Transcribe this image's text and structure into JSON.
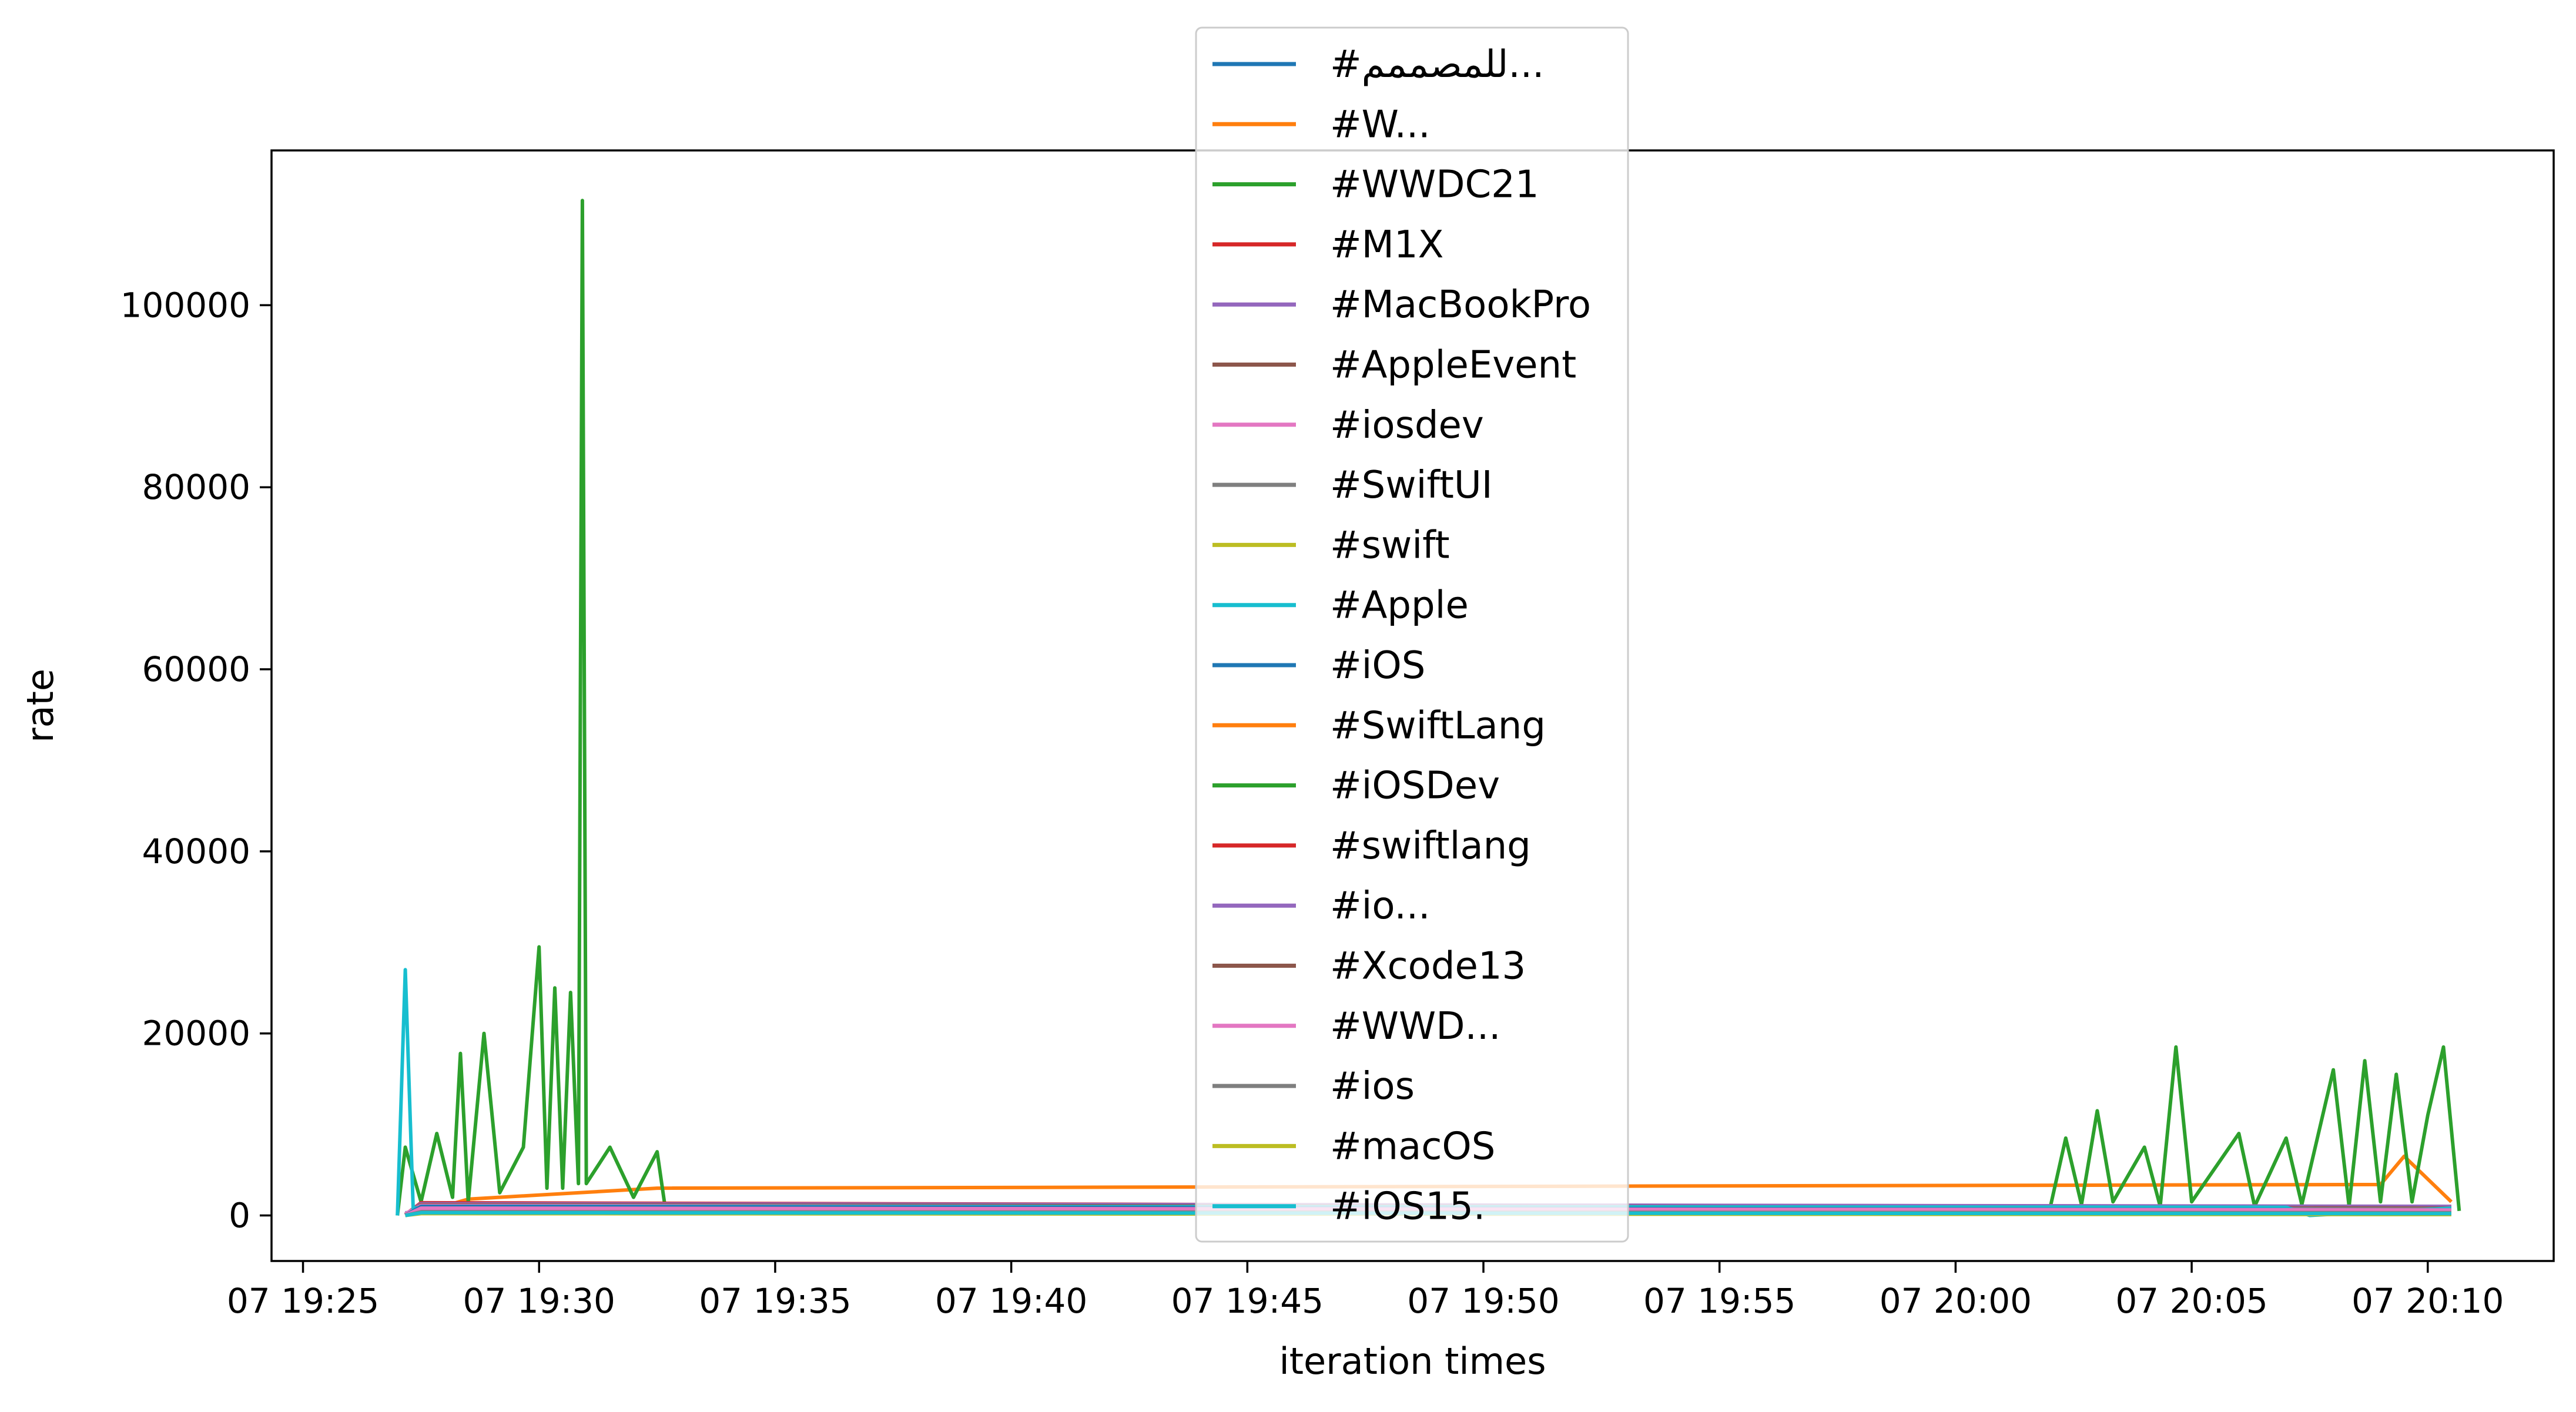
{
  "chart_data": {
    "type": "line",
    "title": "",
    "xlabel": "iteration times",
    "ylabel": "rate",
    "x_range": [
      "07 19:27:00",
      "07 20:10:40"
    ],
    "xlim": [
      "07 19:24:20",
      "07 20:12:40"
    ],
    "ylim": [
      -5000,
      117000
    ],
    "x_ticks": [
      "07 19:25",
      "07 19:30",
      "07 19:35",
      "07 19:40",
      "07 19:45",
      "07 19:50",
      "07 19:55",
      "07 20:00",
      "07 20:05",
      "07 20:10"
    ],
    "y_ticks": [
      0,
      20000,
      40000,
      60000,
      80000,
      100000
    ],
    "grid": false,
    "legend_position": "upper center",
    "series": [
      {
        "name": "#للمصممم...",
        "color": "#1f77b4",
        "points": [
          [
            "07 19:27:10",
            300
          ],
          [
            "07 19:32:30",
            600
          ],
          [
            "07 20:03:00",
            700
          ],
          [
            "07 20:10:30",
            600
          ]
        ]
      },
      {
        "name": "#W...",
        "color": "#ff7f0e",
        "points": [
          [
            "07 19:27:10",
            0
          ],
          [
            "07 19:27:50",
            800
          ],
          [
            "07 19:28:30",
            1800
          ],
          [
            "07 19:32:30",
            3000
          ],
          [
            "07 20:09:00",
            3400
          ],
          [
            "07 20:09:30",
            6500
          ],
          [
            "07 20:10:30",
            1500
          ]
        ]
      },
      {
        "name": "#WWDC21",
        "color": "#2ca02c",
        "points": [
          [
            "07 19:27:00",
            0
          ],
          [
            "07 19:27:10",
            7500
          ],
          [
            "07 19:27:30",
            1500
          ],
          [
            "07 19:27:50",
            9000
          ],
          [
            "07 19:28:10",
            2000
          ],
          [
            "07 19:28:20",
            17800
          ],
          [
            "07 19:28:30",
            1500
          ],
          [
            "07 19:28:50",
            20000
          ],
          [
            "07 19:29:10",
            2500
          ],
          [
            "07 19:29:40",
            7500
          ],
          [
            "07 19:30:00",
            29500
          ],
          [
            "07 19:30:10",
            3000
          ],
          [
            "07 19:30:20",
            25000
          ],
          [
            "07 19:30:30",
            3000
          ],
          [
            "07 19:30:40",
            24500
          ],
          [
            "07 19:30:50",
            3500
          ],
          [
            "07 19:30:55",
            111500
          ],
          [
            "07 19:31:00",
            3500
          ],
          [
            "07 19:31:30",
            7500
          ],
          [
            "07 19:32:00",
            2000
          ],
          [
            "07 19:32:30",
            7000
          ],
          [
            "07 19:32:40",
            1000
          ],
          [
            "07 20:02:00",
            800
          ],
          [
            "07 20:02:20",
            8500
          ],
          [
            "07 20:02:40",
            1200
          ],
          [
            "07 20:03:00",
            11500
          ],
          [
            "07 20:03:20",
            1500
          ],
          [
            "07 20:04:00",
            7500
          ],
          [
            "07 20:04:20",
            1000
          ],
          [
            "07 20:04:40",
            18500
          ],
          [
            "07 20:05:00",
            1500
          ],
          [
            "07 20:06:00",
            9000
          ],
          [
            "07 20:06:20",
            1000
          ],
          [
            "07 20:07:00",
            8500
          ],
          [
            "07 20:07:20",
            1200
          ],
          [
            "07 20:08:00",
            16000
          ],
          [
            "07 20:08:20",
            1000
          ],
          [
            "07 20:08:40",
            17000
          ],
          [
            "07 20:09:00",
            1500
          ],
          [
            "07 20:09:20",
            15500
          ],
          [
            "07 20:09:40",
            1500
          ],
          [
            "07 20:10:00",
            11000
          ],
          [
            "07 20:10:20",
            18500
          ],
          [
            "07 20:10:40",
            500
          ]
        ]
      },
      {
        "name": "#M1X",
        "color": "#d62728",
        "points": [
          [
            "07 19:27:10",
            100
          ],
          [
            "07 19:27:30",
            1400
          ],
          [
            "07 20:10:30",
            900
          ]
        ]
      },
      {
        "name": "#MacBookPro",
        "color": "#9467bd",
        "points": [
          [
            "07 19:27:10",
            100
          ],
          [
            "07 19:27:30",
            1300
          ],
          [
            "07 20:10:30",
            1000
          ]
        ]
      },
      {
        "name": "#AppleEvent",
        "color": "#8c564b",
        "points": [
          [
            "07 19:27:10",
            100
          ],
          [
            "07 19:27:30",
            1200
          ],
          [
            "07 20:10:30",
            800
          ]
        ]
      },
      {
        "name": "#iosdev",
        "color": "#e377c2",
        "points": [
          [
            "07 19:27:10",
            200
          ],
          [
            "07 19:27:30",
            1100
          ],
          [
            "07 20:10:30",
            700
          ]
        ]
      },
      {
        "name": "#SwiftUI",
        "color": "#7f7f7f",
        "points": [
          [
            "07 19:27:10",
            50
          ],
          [
            "07 19:27:30",
            900
          ],
          [
            "07 20:10:30",
            700
          ]
        ]
      },
      {
        "name": "#swift",
        "color": "#bcbd22",
        "points": [
          [
            "07 19:27:10",
            0
          ],
          [
            "07 19:27:30",
            500
          ],
          [
            "07 20:10:30",
            300
          ]
        ]
      },
      {
        "name": "#Apple",
        "color": "#17becf",
        "points": [
          [
            "07 19:27:00",
            0
          ],
          [
            "07 19:27:10",
            27000
          ],
          [
            "07 19:27:20",
            800
          ],
          [
            "07 19:28:00",
            1000
          ],
          [
            "07 20:07:00",
            900
          ],
          [
            "07 20:07:30",
            0
          ],
          [
            "07 20:10:30",
            800
          ]
        ]
      },
      {
        "name": "#iOS",
        "color": "#1f77b4",
        "points": [
          [
            "07 19:27:10",
            0
          ],
          [
            "07 19:27:30",
            1000
          ],
          [
            "07 20:10:30",
            600
          ]
        ]
      },
      {
        "name": "#SwiftLang",
        "color": "#ff7f0e",
        "points": [
          [
            "07 19:27:10",
            0
          ],
          [
            "07 19:27:30",
            600
          ],
          [
            "07 20:10:30",
            400
          ]
        ]
      },
      {
        "name": "#iOSDev",
        "color": "#2ca02c",
        "points": [
          [
            "07 19:27:10",
            0
          ],
          [
            "07 19:27:30",
            700
          ],
          [
            "07 20:10:30",
            500
          ]
        ]
      },
      {
        "name": "#swiftlang",
        "color": "#d62728",
        "points": [
          [
            "07 19:27:10",
            0
          ],
          [
            "07 19:27:30",
            400
          ],
          [
            "07 20:10:30",
            300
          ]
        ]
      },
      {
        "name": "#io...",
        "color": "#9467bd",
        "points": [
          [
            "07 19:27:10",
            0
          ],
          [
            "07 19:27:30",
            500
          ],
          [
            "07 20:10:30",
            400
          ]
        ]
      },
      {
        "name": "#Xcode13",
        "color": "#8c564b",
        "points": [
          [
            "07 19:27:10",
            0
          ],
          [
            "07 19:27:30",
            300
          ],
          [
            "07 20:10:30",
            200
          ]
        ]
      },
      {
        "name": "#WWD...",
        "color": "#e377c2",
        "points": [
          [
            "07 19:27:10",
            0
          ],
          [
            "07 19:27:30",
            800
          ],
          [
            "07 20:10:30",
            600
          ]
        ]
      },
      {
        "name": "#ios",
        "color": "#7f7f7f",
        "points": [
          [
            "07 19:27:10",
            0
          ],
          [
            "07 19:27:30",
            400
          ],
          [
            "07 20:10:30",
            300
          ]
        ]
      },
      {
        "name": "#macOS",
        "color": "#bcbd22",
        "points": [
          [
            "07 19:27:10",
            0
          ],
          [
            "07 19:27:30",
            200
          ],
          [
            "07 20:10:30",
            100
          ]
        ]
      },
      {
        "name": "#iOS15.",
        "color": "#17becf",
        "points": [
          [
            "07 19:27:10",
            0
          ],
          [
            "07 19:27:30",
            300
          ],
          [
            "07 20:10:30",
            200
          ]
        ]
      }
    ]
  }
}
